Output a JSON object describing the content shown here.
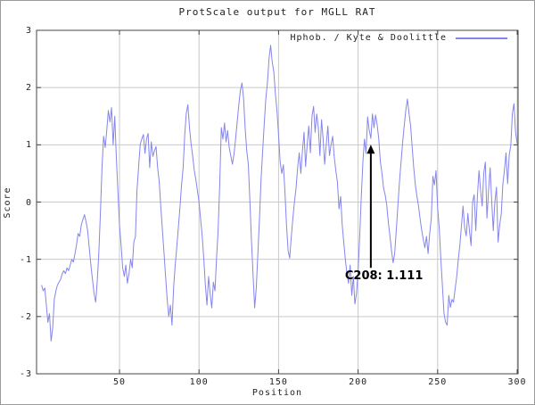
{
  "chart": {
    "title": "ProtScale output for MGLL RAT",
    "legend_label": "Hphob. / Kyte & Doolittle",
    "xlabel": "Position",
    "ylabel": "Score",
    "annotation_text": "C208: 1.111",
    "colors": {
      "line": "#8585ee",
      "grid": "#c9c9c9",
      "plot_border": "#444444",
      "text": "#222222",
      "annotation": "#000000",
      "background": "#ffffff"
    }
  },
  "chart_data": {
    "type": "line",
    "title": "ProtScale output for MGLL RAT",
    "xlabel": "Position",
    "ylabel": "Score",
    "xlim": [
      1,
      300
    ],
    "ylim": [
      -3,
      3
    ],
    "grid": true,
    "legend_position": "top-right",
    "x_tick_values": [
      50,
      100,
      150,
      200,
      250,
      300
    ],
    "y_tick_values": [
      3,
      2,
      1,
      0,
      -1,
      -2,
      -3
    ],
    "annotations": [
      {
        "text": "C208: 1.111",
        "x": 208,
        "y": 1.111
      }
    ],
    "series": [
      {
        "name": "Hphob. / Kyte & Doolittle",
        "x_start": 1,
        "x_step": 1,
        "values": [
          -1.45,
          -1.55,
          -1.5,
          -1.8,
          -2.1,
          -1.95,
          -2.43,
          -2.2,
          -1.7,
          -1.55,
          -1.45,
          -1.4,
          -1.35,
          -1.25,
          -1.2,
          -1.25,
          -1.15,
          -1.2,
          -1.1,
          -1.0,
          -1.05,
          -0.9,
          -0.75,
          -0.55,
          -0.6,
          -0.4,
          -0.3,
          -0.22,
          -0.35,
          -0.5,
          -0.8,
          -1.1,
          -1.35,
          -1.6,
          -1.75,
          -1.4,
          -0.9,
          -0.2,
          0.6,
          1.15,
          0.95,
          1.25,
          1.6,
          1.4,
          1.65,
          1.0,
          1.5,
          0.8,
          0.2,
          -0.4,
          -0.75,
          -1.15,
          -1.3,
          -1.1,
          -1.42,
          -1.25,
          -1.0,
          -1.15,
          -0.7,
          -0.6,
          0.2,
          0.6,
          1.0,
          1.1,
          1.18,
          0.85,
          1.1,
          1.2,
          0.6,
          1.05,
          0.8,
          0.9,
          0.97,
          0.6,
          0.35,
          -0.1,
          -0.5,
          -0.9,
          -1.3,
          -1.7,
          -2.0,
          -1.8,
          -2.15,
          -1.5,
          -1.1,
          -0.8,
          -0.45,
          -0.1,
          0.3,
          0.6,
          1.18,
          1.55,
          1.7,
          1.3,
          1.02,
          0.8,
          0.55,
          0.4,
          0.2,
          0.0,
          -0.3,
          -0.6,
          -1.0,
          -1.45,
          -1.8,
          -1.3,
          -1.6,
          -1.85,
          -1.4,
          -1.55,
          -1.0,
          -0.5,
          0.3,
          1.3,
          1.1,
          1.38,
          1.05,
          1.25,
          0.95,
          0.8,
          0.66,
          0.85,
          1.1,
          1.4,
          1.7,
          1.95,
          2.08,
          1.8,
          1.3,
          0.9,
          0.66,
          0.0,
          -0.7,
          -1.3,
          -1.85,
          -1.5,
          -0.9,
          -0.3,
          0.4,
          0.9,
          1.38,
          1.8,
          2.08,
          2.5,
          2.74,
          2.45,
          2.27,
          1.9,
          1.6,
          1.18,
          0.7,
          0.5,
          0.65,
          0.2,
          -0.4,
          -0.85,
          -0.98,
          -0.6,
          -0.28,
          0.0,
          0.24,
          0.6,
          0.86,
          0.5,
          0.9,
          1.22,
          0.62,
          1.0,
          1.33,
          0.86,
          1.5,
          1.67,
          1.22,
          1.54,
          1.3,
          0.81,
          1.44,
          1.1,
          0.66,
          1.0,
          1.33,
          0.81,
          1.0,
          1.15,
          0.8,
          0.55,
          0.35,
          -0.12,
          0.1,
          -0.4,
          -0.7,
          -1.0,
          -1.25,
          -1.42,
          -1.1,
          -1.63,
          -1.3,
          -1.78,
          -1.6,
          -1.2,
          -0.6,
          0.1,
          0.7,
          1.1,
          0.85,
          1.49,
          1.25,
          1.111,
          1.54,
          1.3,
          1.52,
          1.35,
          1.1,
          0.7,
          0.5,
          0.25,
          0.13,
          -0.05,
          -0.35,
          -0.59,
          -0.85,
          -1.06,
          -0.9,
          -0.5,
          -0.07,
          0.35,
          0.7,
          1.05,
          1.33,
          1.6,
          1.8,
          1.55,
          1.33,
          0.95,
          0.6,
          0.3,
          0.1,
          -0.07,
          -0.3,
          -0.5,
          -0.65,
          -0.8,
          -0.6,
          -0.9,
          -0.55,
          -0.28,
          0.45,
          0.3,
          0.55,
          -0.1,
          -0.45,
          -1.0,
          -1.47,
          -1.94,
          -2.1,
          -2.15,
          -1.63,
          -1.84,
          -1.7,
          -1.75,
          -1.52,
          -1.3,
          -1.0,
          -0.75,
          -0.4,
          -0.07,
          -0.45,
          -0.59,
          -0.2,
          -0.5,
          -0.76,
          0.0,
          0.13,
          -0.5,
          0.1,
          0.55,
          0.2,
          -0.07,
          0.5,
          0.7,
          -0.28,
          0.2,
          0.6,
          0.0,
          -0.5,
          0.0,
          0.26,
          -0.7,
          -0.4,
          -0.2,
          0.3,
          0.55,
          0.86,
          0.32,
          0.82,
          1.0,
          1.54,
          1.72,
          1.22,
          1.02
        ]
      }
    ]
  }
}
